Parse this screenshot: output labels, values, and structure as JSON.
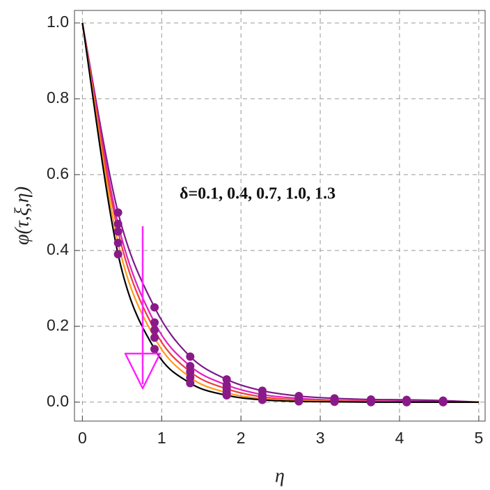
{
  "chart_data": {
    "type": "line",
    "xlabel": "η",
    "ylabel": "φ(τ,ξ,η)",
    "annotation": "δ=0.1, 0.4, 0.7, 1.0, 1.3",
    "x": [
      0,
      0.45,
      0.91,
      1.36,
      1.82,
      2.27,
      2.73,
      3.18,
      3.64,
      4.09,
      4.55,
      5
    ],
    "series": [
      {
        "color": "#7a1a88",
        "values": [
          1,
          0.5,
          0.25,
          0.12,
          0.06,
          0.03,
          0.016,
          0.01,
          0.007,
          0.006,
          0.004,
          0
        ]
      },
      {
        "color": "#e020c0",
        "values": [
          1,
          0.47,
          0.21,
          0.095,
          0.045,
          0.02,
          0.01,
          0.005,
          0.003,
          0.002,
          0.001,
          0
        ]
      },
      {
        "color": "#f03c3c",
        "values": [
          1,
          0.45,
          0.19,
          0.08,
          0.035,
          0.014,
          0.006,
          0.003,
          0.002,
          0.001,
          0,
          0
        ]
      },
      {
        "color": "#ff9a1a",
        "values": [
          1,
          0.42,
          0.17,
          0.065,
          0.025,
          0.009,
          0.004,
          0.002,
          0.001,
          0,
          0,
          0
        ]
      },
      {
        "color": "#000000",
        "values": [
          1,
          0.39,
          0.14,
          0.05,
          0.018,
          0.006,
          0.002,
          0.001,
          0,
          0,
          0,
          0
        ]
      }
    ],
    "marker_color": "#8a1a8a",
    "xlim": [
      -0.1,
      5.08
    ],
    "ylim": [
      -0.05,
      1.033
    ],
    "xticks": [
      0,
      1,
      2,
      3,
      4,
      5
    ],
    "yticks": [
      {
        "value": 0,
        "label": "0.0"
      },
      0.2,
      0.4,
      0.6,
      0.8,
      {
        "value": 1,
        "label": "1.0"
      }
    ],
    "grid": true
  }
}
